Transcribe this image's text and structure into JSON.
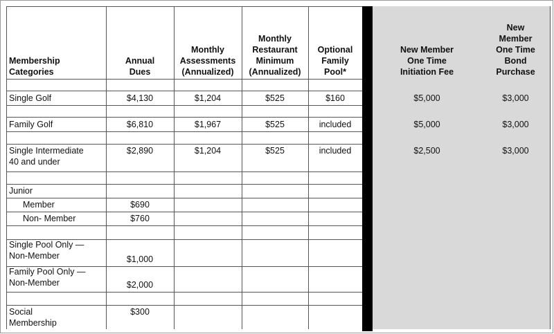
{
  "table": {
    "header": [
      "Membership\nCategories",
      "Annual\nDues",
      "Monthly\nAssessments\n(Annualized)",
      "Monthly\nRestaurant\nMinimum\n(Annualized)",
      "Optional\nFamily\nPool*",
      "New Member\nOne Time\nInitiation Fee",
      "New\nMember\nOne Time\nBond\nPurchase"
    ],
    "rows": [
      [
        "Single Golf",
        "$4,130",
        "$1,204",
        "$525",
        "$160",
        "$5,000",
        "$3,000"
      ],
      [
        "Family Golf",
        "$6,810",
        "$1,967",
        "$525",
        "included",
        "$5,000",
        "$3,000"
      ],
      [
        "Single Intermediate\n40 and under",
        "$2,890",
        "$1,204",
        "$525",
        "included",
        "$2,500",
        "$3,000"
      ],
      [
        "Junior",
        null,
        null,
        null,
        null,
        null,
        null
      ],
      [
        "Member",
        "$690",
        null,
        null,
        null,
        null,
        null
      ],
      [
        "Non- Member",
        "$760",
        null,
        null,
        null,
        null,
        null
      ],
      [
        "Single Pool Only —\nNon-Member",
        "$1,000",
        null,
        null,
        null,
        null,
        null
      ],
      [
        "Family Pool Only —\nNon-Member",
        "$2,000",
        null,
        null,
        null,
        null,
        null
      ],
      [
        "Social\nMembership",
        "$300",
        null,
        null,
        null,
        null,
        null
      ]
    ]
  }
}
